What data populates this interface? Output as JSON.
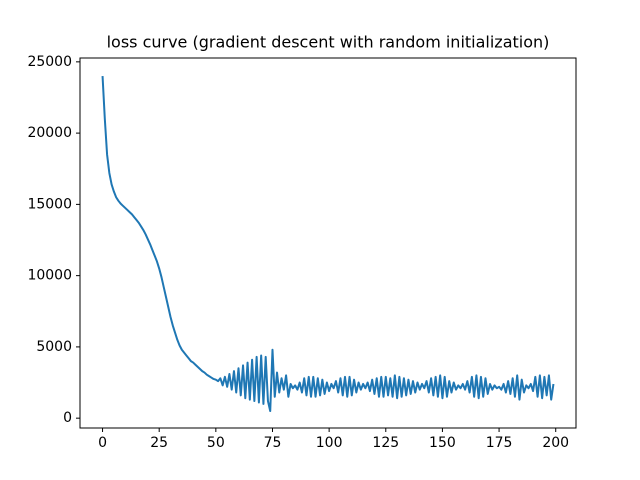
{
  "chart_data": {
    "type": "line",
    "title": "loss curve (gradient descent with random initialization)",
    "x": [
      0,
      1,
      2,
      3,
      4,
      5,
      6,
      7,
      8,
      9,
      10,
      11,
      12,
      13,
      14,
      15,
      16,
      17,
      18,
      19,
      20,
      21,
      22,
      23,
      24,
      25,
      26,
      27,
      28,
      29,
      30,
      31,
      32,
      33,
      34,
      35,
      36,
      37,
      38,
      39,
      40,
      41,
      42,
      43,
      44,
      45,
      46,
      47,
      48,
      49,
      50,
      51,
      52,
      53,
      54,
      55,
      56,
      57,
      58,
      59,
      60,
      61,
      62,
      63,
      64,
      65,
      66,
      67,
      68,
      69,
      70,
      71,
      72,
      73,
      74,
      75,
      76,
      77,
      78,
      79,
      80,
      81,
      82,
      83,
      84,
      85,
      86,
      87,
      88,
      89,
      90,
      91,
      92,
      93,
      94,
      95,
      96,
      97,
      98,
      99,
      100,
      101,
      102,
      103,
      104,
      105,
      106,
      107,
      108,
      109,
      110,
      111,
      112,
      113,
      114,
      115,
      116,
      117,
      118,
      119,
      120,
      121,
      122,
      123,
      124,
      125,
      126,
      127,
      128,
      129,
      130,
      131,
      132,
      133,
      134,
      135,
      136,
      137,
      138,
      139,
      140,
      141,
      142,
      143,
      144,
      145,
      146,
      147,
      148,
      149,
      150,
      151,
      152,
      153,
      154,
      155,
      156,
      157,
      158,
      159,
      160,
      161,
      162,
      163,
      164,
      165,
      166,
      167,
      168,
      169,
      170,
      171,
      172,
      173,
      174,
      175,
      176,
      177,
      178,
      179,
      180,
      181,
      182,
      183,
      184,
      185,
      186,
      187,
      188,
      189,
      190,
      191,
      192,
      193,
      194,
      195,
      196,
      197,
      198,
      199
    ],
    "series": [
      {
        "color": "#1f77b4",
        "values": [
          24000,
          21000,
          18500,
          17200,
          16400,
          15900,
          15500,
          15250,
          15050,
          14900,
          14750,
          14600,
          14450,
          14300,
          14100,
          13900,
          13700,
          13450,
          13200,
          12900,
          12550,
          12200,
          11800,
          11400,
          11000,
          10500,
          9900,
          9200,
          8500,
          7800,
          7100,
          6500,
          6000,
          5500,
          5100,
          4800,
          4600,
          4400,
          4200,
          4000,
          3900,
          3750,
          3600,
          3450,
          3300,
          3200,
          3050,
          2950,
          2850,
          2750,
          2700,
          2600,
          2800,
          2300,
          2900,
          2200,
          3100,
          2000,
          3300,
          1800,
          3500,
          1600,
          3700,
          1400,
          3900,
          1300,
          4100,
          1200,
          4300,
          1100,
          4400,
          1000,
          4300,
          1200,
          500,
          4800,
          1500,
          3200,
          1800,
          2800,
          2000,
          3000,
          1500,
          2400,
          2100,
          2300,
          2000,
          2500,
          1800,
          2800,
          1600,
          2900,
          1500,
          2900,
          1500,
          2800,
          1600,
          2700,
          1700,
          2500,
          1900,
          2400,
          2100,
          2600,
          1800,
          2800,
          1600,
          2900,
          1500,
          2900,
          1600,
          2700,
          1800,
          2500,
          2000,
          2400,
          2100,
          2500,
          1900,
          2700,
          1700,
          2800,
          1500,
          2900,
          1500,
          2900,
          1600,
          2800,
          1500,
          3000,
          1400,
          2900,
          1500,
          2800,
          1600,
          2700,
          1700,
          2600,
          1800,
          2500,
          2000,
          2400,
          2100,
          2600,
          1800,
          2800,
          1600,
          2900,
          1500,
          3000,
          1400,
          2900,
          1500,
          2600,
          1800,
          2500,
          2000,
          2300,
          2100,
          2400,
          2000,
          2600,
          1800,
          2900,
          1500,
          3000,
          1400,
          2900,
          1500,
          2800,
          1700,
          2400,
          2000,
          2300,
          2100,
          2200,
          2000,
          2400,
          1800,
          2600,
          1700,
          2800,
          1500,
          3000,
          1300,
          2700,
          1800,
          2300,
          2100,
          2400,
          1900,
          2900,
          1500,
          3000,
          1400,
          2900,
          1600,
          3000,
          1300,
          2400
        ]
      }
    ],
    "xlim": [
      -9.95,
      208.95
    ],
    "xticks": [
      0,
      25,
      50,
      75,
      100,
      125,
      150,
      175,
      200
    ],
    "ylim": [
      -690,
      25270
    ],
    "yticks": [
      0,
      5000,
      10000,
      15000,
      20000,
      25000
    ],
    "grid": false
  }
}
